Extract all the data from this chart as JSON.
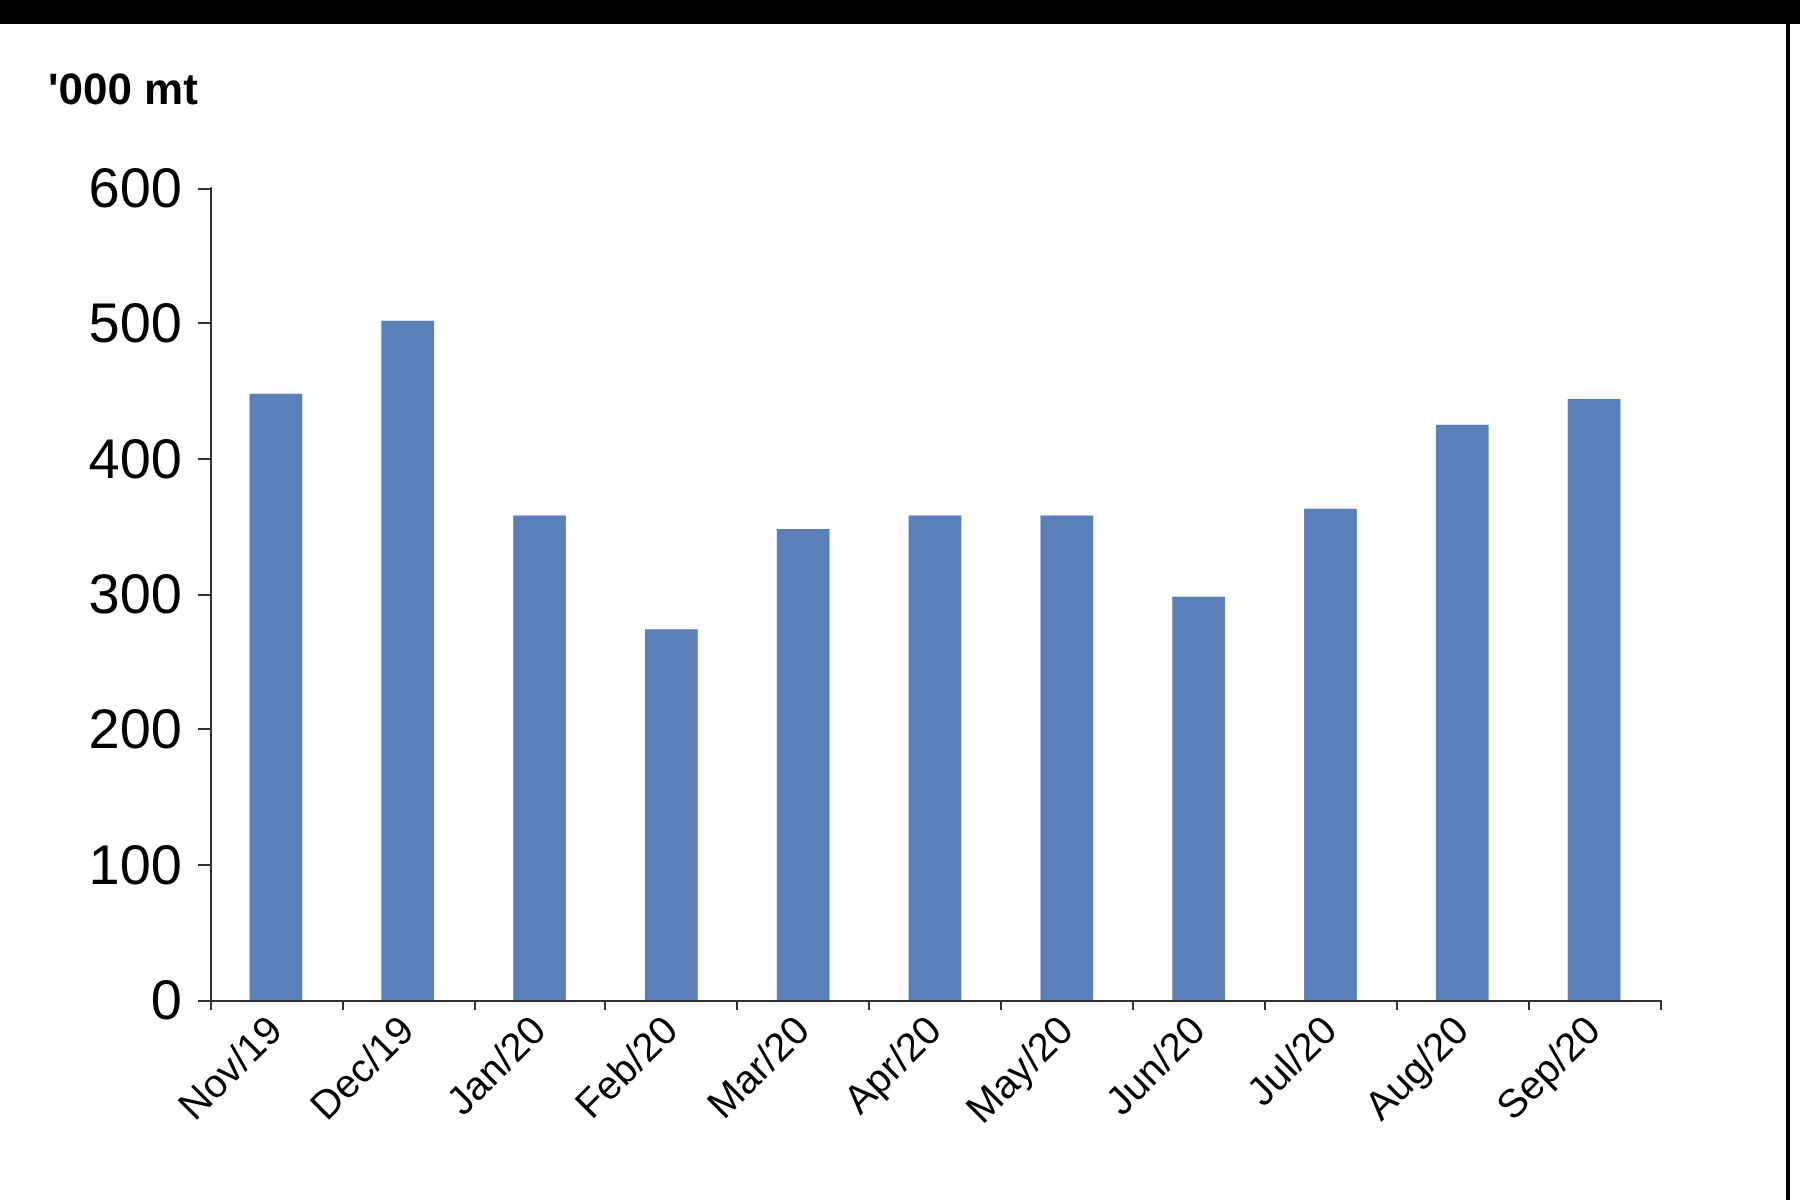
{
  "chart_data": {
    "type": "bar",
    "ylabel": "'000 mt",
    "categories": [
      "Nov/19",
      "Dec/19",
      "Jan/20",
      "Feb/20",
      "Mar/20",
      "Apr/20",
      "May/20",
      "Jun/20",
      "Jul/20",
      "Aug/20",
      "Sep/20"
    ],
    "values": [
      448,
      502,
      358,
      274,
      348,
      358,
      358,
      298,
      363,
      425,
      444
    ],
    "color": "#5b7fb8",
    "ylim": [
      0,
      600
    ],
    "yticks": [
      0,
      100,
      200,
      300,
      400,
      500,
      600
    ],
    "grid": false
  }
}
